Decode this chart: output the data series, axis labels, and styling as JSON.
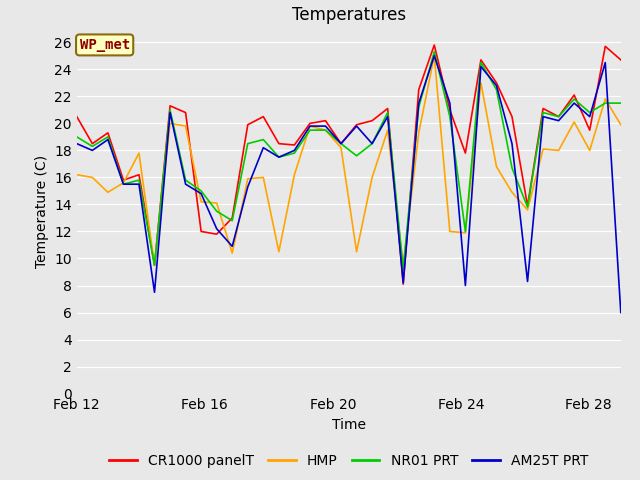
{
  "title": "Temperatures",
  "xlabel": "Time",
  "ylabel": "Temperature (C)",
  "ylim": [
    0,
    27
  ],
  "yticks": [
    0,
    2,
    4,
    6,
    8,
    10,
    12,
    14,
    16,
    18,
    20,
    22,
    24,
    26
  ],
  "xtick_labels": [
    "Feb 12",
    "Feb 16",
    "Feb 20",
    "Feb 24",
    "Feb 28"
  ],
  "xtick_positions": [
    0,
    4,
    8,
    12,
    16
  ],
  "annotation_text": "WP_met",
  "annotation_color": "#8B0000",
  "annotation_bg": "#FFFFC0",
  "annotation_border": "#8B6914",
  "fig_bg": "#E8E8E8",
  "plot_bg": "#E8E8E8",
  "series": {
    "CR1000_panelT": {
      "color": "#FF0000",
      "label": "CR1000 panelT",
      "values": [
        20.5,
        18.5,
        19.3,
        15.8,
        16.2,
        9.5,
        21.3,
        20.8,
        12.0,
        11.8,
        13.0,
        19.9,
        20.5,
        18.5,
        18.4,
        20.0,
        20.2,
        18.5,
        19.9,
        20.2,
        21.1,
        8.1,
        22.5,
        25.8,
        21.0,
        17.8,
        24.7,
        23.0,
        20.5,
        13.9,
        21.1,
        20.5,
        22.1,
        19.5,
        25.7,
        24.7
      ]
    },
    "HMP": {
      "color": "#FFA500",
      "label": "HMP",
      "values": [
        16.2,
        16.0,
        14.9,
        15.6,
        17.8,
        9.5,
        20.0,
        19.8,
        14.2,
        14.1,
        10.4,
        15.9,
        16.0,
        10.5,
        16.2,
        19.8,
        19.5,
        18.2,
        10.5,
        16.0,
        19.5,
        9.5,
        19.3,
        25.0,
        12.0,
        11.9,
        23.0,
        16.8,
        14.9,
        13.6,
        18.1,
        18.0,
        20.1,
        18.0,
        21.8,
        19.9
      ]
    },
    "NR01_PRT": {
      "color": "#00CC00",
      "label": "NR01 PRT",
      "values": [
        19.0,
        18.3,
        19.0,
        15.5,
        15.8,
        9.5,
        21.0,
        15.8,
        15.0,
        13.5,
        12.8,
        18.5,
        18.8,
        17.5,
        17.8,
        19.5,
        19.5,
        18.5,
        17.6,
        18.5,
        20.8,
        9.2,
        21.2,
        25.3,
        20.5,
        12.0,
        24.5,
        22.5,
        16.7,
        13.8,
        20.8,
        20.5,
        21.8,
        20.8,
        21.5,
        21.5
      ]
    },
    "AM25T_PRT": {
      "color": "#0000CC",
      "label": "AM25T PRT",
      "values": [
        18.5,
        18.0,
        18.8,
        15.5,
        15.5,
        7.5,
        20.8,
        15.5,
        14.8,
        12.2,
        10.9,
        15.3,
        18.2,
        17.5,
        18.0,
        19.8,
        19.8,
        18.5,
        19.8,
        18.5,
        20.5,
        8.2,
        21.5,
        25.0,
        21.5,
        8.0,
        24.2,
        22.8,
        18.5,
        8.3,
        20.5,
        20.2,
        21.5,
        20.5,
        24.5,
        6.0
      ]
    }
  },
  "title_fontsize": 12,
  "axis_label_fontsize": 10,
  "tick_fontsize": 10,
  "legend_fontsize": 10
}
